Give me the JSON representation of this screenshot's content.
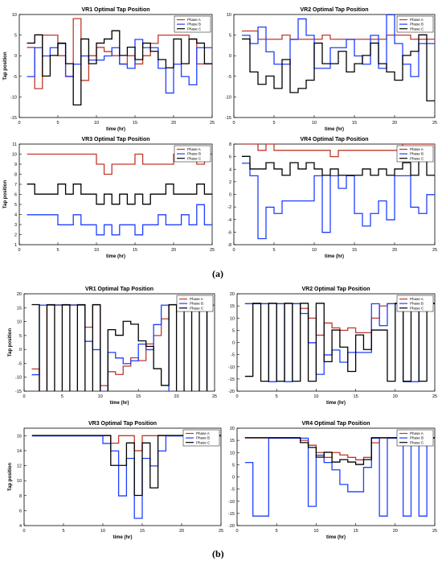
{
  "labels": {
    "a": "(a)",
    "b": "(b)"
  },
  "legend_names": [
    "Phase A",
    "Phase B",
    "Phase C"
  ],
  "colors": {
    "A": "#c0392b",
    "B": "#1f3fff",
    "C": "#000000"
  },
  "chart_data": [
    {
      "type": "line",
      "title": "VR1 Optimal Tap Position",
      "xlabel": "time (hr)",
      "ylabel": "Tap position",
      "xlim": [
        0,
        25
      ],
      "ylim": [
        -15,
        10
      ],
      "xticks": [
        0,
        5,
        10,
        15,
        20,
        25
      ],
      "yticks": [
        -15,
        -10,
        -5,
        0,
        5,
        10
      ],
      "legend_position": "top-right",
      "x": [
        1,
        2,
        3,
        4,
        5,
        6,
        7,
        8,
        9,
        10,
        11,
        12,
        13,
        14,
        15,
        16,
        17,
        18,
        19,
        20,
        21,
        22,
        23,
        24
      ],
      "series": [
        {
          "name": "Phase A",
          "values": [
            2,
            -8,
            5,
            5,
            0,
            -5,
            9,
            -6,
            0,
            2,
            1,
            0,
            -2,
            0,
            -2,
            0,
            3,
            5,
            5,
            5,
            5,
            4,
            -2,
            -2
          ]
        },
        {
          "name": "Phase B",
          "values": [
            -5,
            2,
            0,
            2,
            3,
            -5,
            -2,
            0,
            -1,
            -1,
            0,
            2,
            -2,
            -3,
            4,
            2,
            2,
            -3,
            -9,
            -2,
            -5,
            -7,
            2,
            2
          ]
        },
        {
          "name": "Phase C",
          "values": [
            3,
            5,
            -5,
            0,
            3,
            -2,
            -12,
            4,
            -2,
            3,
            4,
            6,
            0,
            2,
            -1,
            3,
            1,
            -1,
            -3,
            4,
            -2,
            4,
            3,
            -2
          ]
        }
      ]
    },
    {
      "type": "line",
      "title": "VR2 Optimal Tap Position",
      "xlabel": "time (hr)",
      "ylabel": "",
      "xlim": [
        0,
        25
      ],
      "ylim": [
        -15,
        10
      ],
      "xticks": [
        0,
        5,
        10,
        15,
        20,
        25
      ],
      "yticks": [
        -15,
        -10,
        -5,
        0,
        5,
        10
      ],
      "legend_position": "top-right",
      "x": [
        1,
        2,
        3,
        4,
        5,
        6,
        7,
        8,
        9,
        10,
        11,
        12,
        13,
        14,
        15,
        16,
        17,
        18,
        19,
        20,
        21,
        22,
        23,
        24
      ],
      "series": [
        {
          "name": "Phase A",
          "values": [
            6,
            6,
            4,
            4,
            4,
            5,
            4,
            4,
            4,
            4,
            5,
            4,
            4,
            4,
            4,
            4,
            4,
            4,
            5,
            5,
            5,
            4,
            4,
            4
          ]
        },
        {
          "name": "Phase B",
          "values": [
            5,
            3,
            7,
            1,
            -2,
            -2,
            4,
            9,
            5,
            -3,
            -3,
            2,
            2,
            4,
            0,
            -2,
            5,
            -3,
            10,
            3,
            -2,
            -5,
            3,
            3
          ]
        },
        {
          "name": "Phase C",
          "values": [
            4,
            -4,
            -7,
            -5,
            -8,
            -1,
            -9,
            -8,
            -6,
            3,
            -2,
            -2,
            1,
            -4,
            -2,
            0,
            3,
            -2,
            -4,
            -6,
            0,
            1,
            5,
            -11
          ]
        }
      ]
    },
    {
      "type": "line",
      "title": "VR3 Optimal Tap Position",
      "xlabel": "time (hr)",
      "ylabel": "Tap position",
      "xlim": [
        0,
        25
      ],
      "ylim": [
        1,
        11
      ],
      "xticks": [
        0,
        5,
        10,
        15,
        20,
        25
      ],
      "yticks": [
        1,
        2,
        3,
        4,
        5,
        6,
        7,
        8,
        9,
        10,
        11
      ],
      "legend_position": "top-right",
      "x": [
        1,
        2,
        3,
        4,
        5,
        6,
        7,
        8,
        9,
        10,
        11,
        12,
        13,
        14,
        15,
        16,
        17,
        18,
        19,
        20,
        21,
        22,
        23,
        24
      ],
      "series": [
        {
          "name": "Phase A",
          "values": [
            10,
            10,
            10,
            10,
            10,
            10,
            10,
            10,
            10,
            9,
            8,
            9,
            9,
            9,
            10,
            9,
            9,
            9,
            9,
            10,
            10,
            10,
            9,
            10
          ]
        },
        {
          "name": "Phase B",
          "values": [
            4,
            4,
            4,
            4,
            3,
            3,
            4,
            3,
            3,
            2,
            3,
            2,
            3,
            3,
            2,
            3,
            3,
            4,
            3,
            3,
            4,
            3,
            5,
            3
          ]
        },
        {
          "name": "Phase C",
          "values": [
            7,
            6,
            6,
            6,
            7,
            6,
            7,
            6,
            6,
            5,
            6,
            5,
            6,
            5,
            6,
            5,
            6,
            6,
            7,
            6,
            6,
            6,
            7,
            6
          ]
        }
      ]
    },
    {
      "type": "line",
      "title": "VR4 Optimal Tap Position",
      "xlabel": "time (hr)",
      "ylabel": "",
      "xlim": [
        0,
        25
      ],
      "ylim": [
        -8,
        8
      ],
      "xticks": [
        0,
        5,
        10,
        15,
        20,
        25
      ],
      "yticks": [
        -8,
        -6,
        -4,
        -2,
        0,
        2,
        4,
        6,
        8
      ],
      "legend_position": "top-right",
      "x": [
        1,
        2,
        3,
        4,
        5,
        6,
        7,
        8,
        9,
        10,
        11,
        12,
        13,
        14,
        15,
        16,
        17,
        18,
        19,
        20,
        21,
        22,
        23,
        24
      ],
      "series": [
        {
          "name": "Phase A",
          "values": [
            8,
            8,
            7,
            8,
            7,
            7,
            7,
            7,
            7,
            7,
            7,
            6,
            7,
            7,
            7,
            7,
            7,
            7,
            7,
            7,
            8,
            8,
            8,
            8
          ]
        },
        {
          "name": "Phase B",
          "values": [
            5,
            3,
            -7,
            -2,
            -3,
            -1,
            -1,
            -1,
            -1,
            3,
            -6,
            3,
            1,
            3,
            -3,
            -5,
            -3,
            -1,
            -4,
            3,
            3,
            -2,
            -3,
            0
          ]
        },
        {
          "name": "Phase C",
          "values": [
            6,
            4,
            4,
            5,
            4,
            3,
            5,
            4,
            5,
            4,
            3,
            4,
            3,
            3,
            3,
            4,
            3,
            4,
            3,
            4,
            5,
            3,
            6,
            3
          ]
        }
      ]
    },
    {
      "type": "line",
      "title": "VR1 Optimal Tap Position",
      "xlabel": "time (hr)",
      "ylabel": "Tap position",
      "xlim": [
        0,
        25
      ],
      "ylim": [
        -15,
        20
      ],
      "xticks": [
        0,
        5,
        10,
        15,
        20,
        25
      ],
      "yticks": [
        -15,
        -10,
        -5,
        0,
        5,
        10,
        15,
        20
      ],
      "legend_position": "top-right",
      "x": [
        1,
        2,
        3,
        4,
        5,
        6,
        7,
        8,
        9,
        10,
        11,
        12,
        13,
        14,
        15,
        16,
        17,
        18,
        19,
        20,
        21,
        22,
        23,
        24
      ],
      "series": [
        {
          "name": "Phase A",
          "values": [
            -7,
            -16,
            16,
            16,
            16,
            16,
            16,
            8,
            16,
            -13,
            -8,
            -9,
            -6,
            -3,
            -4,
            2,
            5,
            11,
            16,
            16,
            16,
            16,
            16,
            -16
          ]
        },
        {
          "name": "Phase B",
          "values": [
            -9,
            16,
            16,
            16,
            16,
            16,
            16,
            3,
            0,
            -15,
            -1,
            -3,
            -5,
            -4,
            2,
            0,
            9,
            16,
            -16,
            -16,
            -16,
            -16,
            -16,
            16
          ]
        },
        {
          "name": "Phase C",
          "values": [
            16,
            -16,
            16,
            -16,
            16,
            -16,
            16,
            -16,
            16,
            -16,
            7,
            5,
            10,
            9,
            3,
            1,
            -7,
            -13,
            16,
            -16,
            16,
            -16,
            16,
            -16
          ]
        }
      ]
    },
    {
      "type": "line",
      "title": "VR2 Optimal Tap Position",
      "xlabel": "time (hr)",
      "ylabel": "",
      "xlim": [
        0,
        25
      ],
      "ylim": [
        -20,
        20
      ],
      "xticks": [
        0,
        5,
        10,
        15,
        20,
        25
      ],
      "yticks": [
        -20,
        -15,
        -10,
        -5,
        0,
        5,
        10,
        15,
        20
      ],
      "legend_position": "top-right",
      "x": [
        1,
        2,
        3,
        4,
        5,
        6,
        7,
        8,
        9,
        10,
        11,
        12,
        13,
        14,
        15,
        16,
        17,
        18,
        19,
        20,
        21,
        22,
        23,
        24
      ],
      "series": [
        {
          "name": "Phase A",
          "values": [
            16,
            16,
            16,
            16,
            16,
            16,
            16,
            14,
            10,
            3,
            8,
            6,
            5,
            6,
            4,
            4,
            10,
            15,
            16,
            16,
            16,
            16,
            16,
            16
          ]
        },
        {
          "name": "Phase B",
          "values": [
            16,
            16,
            16,
            -16,
            16,
            -16,
            16,
            12,
            0,
            -13,
            -5,
            -3,
            -8,
            -4,
            -4,
            -4,
            16,
            7,
            16,
            16,
            -16,
            -16,
            16,
            16
          ]
        },
        {
          "name": "Phase C",
          "values": [
            -14,
            16,
            -16,
            16,
            -16,
            16,
            -16,
            16,
            -16,
            16,
            -8,
            5,
            -2,
            -12,
            3,
            -3,
            5,
            5,
            -16,
            16,
            -16,
            16,
            -16,
            16
          ]
        }
      ]
    },
    {
      "type": "line",
      "title": "VR3 Optimal Tap Position",
      "xlabel": "time (hr)",
      "ylabel": "Tap position",
      "xlim": [
        0,
        25
      ],
      "ylim": [
        4,
        17
      ],
      "xticks": [
        0,
        5,
        10,
        15,
        20,
        25
      ],
      "yticks": [
        4,
        6,
        8,
        10,
        12,
        14,
        16
      ],
      "legend_position": "top-right",
      "x": [
        1,
        2,
        3,
        4,
        5,
        6,
        7,
        8,
        9,
        10,
        11,
        12,
        13,
        14,
        15,
        16,
        17,
        18,
        19,
        20,
        21,
        22,
        23,
        24
      ],
      "series": [
        {
          "name": "Phase A",
          "values": [
            16,
            16,
            16,
            16,
            16,
            16,
            16,
            16,
            16,
            16,
            15,
            16,
            16,
            14,
            16,
            16,
            16,
            16,
            16,
            16,
            16,
            16,
            16,
            16
          ]
        },
        {
          "name": "Phase B",
          "values": [
            16,
            16,
            16,
            16,
            16,
            16,
            16,
            16,
            16,
            15,
            14,
            8,
            13,
            5,
            13,
            12,
            14,
            16,
            16,
            16,
            16,
            16,
            16,
            16
          ]
        },
        {
          "name": "Phase C",
          "values": [
            16,
            16,
            16,
            16,
            16,
            16,
            16,
            16,
            16,
            16,
            12,
            12,
            15,
            8,
            15,
            9,
            16,
            16,
            16,
            16,
            16,
            16,
            16,
            16
          ]
        }
      ]
    },
    {
      "type": "line",
      "title": "VR4 Optimal Tap Position",
      "xlabel": "time (hr)",
      "ylabel": "",
      "xlim": [
        0,
        25
      ],
      "ylim": [
        -20,
        20
      ],
      "xticks": [
        0,
        5,
        10,
        15,
        20,
        25
      ],
      "yticks": [
        -20,
        -15,
        -10,
        -5,
        0,
        5,
        10,
        15,
        20
      ],
      "legend_position": "top-right",
      "x": [
        1,
        2,
        3,
        4,
        5,
        6,
        7,
        8,
        9,
        10,
        11,
        12,
        13,
        14,
        15,
        16,
        17,
        18,
        19,
        20,
        21,
        22,
        23,
        24
      ],
      "series": [
        {
          "name": "Phase A",
          "values": [
            16,
            16,
            16,
            16,
            16,
            16,
            16,
            15,
            13,
            10,
            8,
            10,
            9,
            8,
            7,
            8,
            14,
            16,
            16,
            16,
            16,
            16,
            16,
            16
          ]
        },
        {
          "name": "Phase B",
          "values": [
            6,
            -16,
            -16,
            16,
            16,
            16,
            16,
            16,
            -12,
            9,
            6,
            3,
            -3,
            -6,
            -6,
            4,
            16,
            -16,
            16,
            16,
            -16,
            16,
            -16,
            16
          ]
        },
        {
          "name": "Phase C",
          "values": [
            16,
            16,
            16,
            16,
            16,
            16,
            16,
            14,
            12,
            8,
            10,
            6,
            7,
            6,
            5,
            7,
            16,
            16,
            16,
            16,
            16,
            16,
            16,
            16
          ]
        }
      ]
    }
  ]
}
